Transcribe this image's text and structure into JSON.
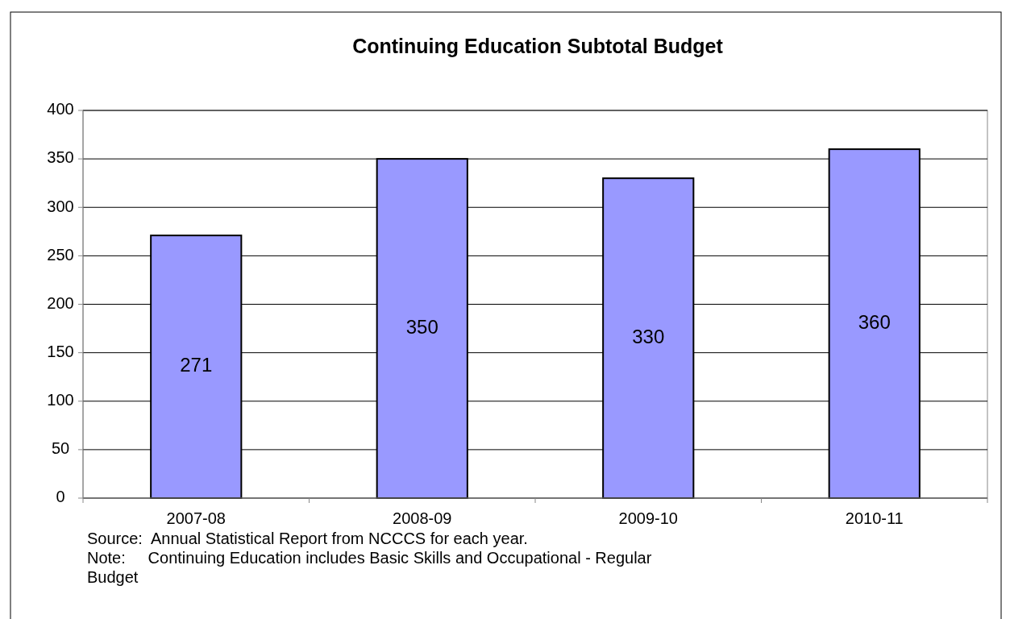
{
  "chart_data": {
    "type": "bar",
    "title": "Continuing Education Subtotal Budget",
    "categories": [
      "2007-08",
      "2008-09",
      "2009-10",
      "2010-11"
    ],
    "values": [
      271,
      350,
      330,
      360
    ],
    "color": "#9999ff",
    "ylim": [
      0,
      400
    ],
    "yticks": [
      0,
      50,
      100,
      150,
      200,
      250,
      300,
      350,
      400
    ],
    "grid": "y",
    "data_labels": true,
    "annotations": [
      "Source:  Annual Statistical Report from NCCCS for each year.",
      "Note:     Continuing Education includes Basic Skills and Occupational - Regular Budget"
    ]
  }
}
